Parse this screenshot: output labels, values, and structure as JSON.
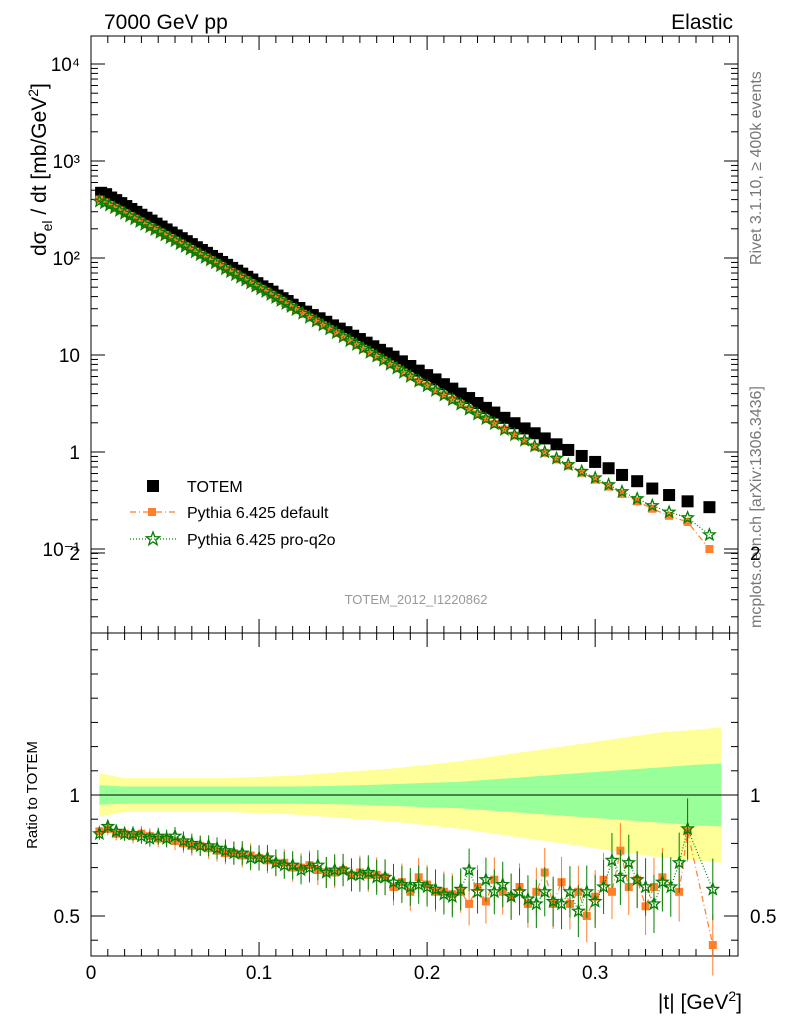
{
  "header": {
    "left": "7000 GeV pp",
    "right": "Elastic"
  },
  "side": {
    "rivet": "Rivet 3.1.10, ≥ 400k events",
    "mcplots": "mcplots.cern.ch [arXiv:1306.3436]"
  },
  "analysis_id": "TOTEM_2012_I1220862",
  "x_axis_label": "|t| [GeV²]",
  "y_axis_label": "dσel / dt [mb/GeV²]",
  "ratio_axis_label": "Ratio to TOTEM",
  "legend": [
    {
      "label": "TOTEM"
    },
    {
      "label": "Pythia 6.425 default"
    },
    {
      "label": "Pythia 6.425 pro-q2o"
    }
  ],
  "colors": {
    "data": "#000000",
    "default": "#ff7f2a",
    "proq2o": "#007f00",
    "band_inner": "#99ff99",
    "band_outer": "#ffff99"
  },
  "chart_data": [
    {
      "type": "scatter",
      "name": "main",
      "xlim": [
        0,
        0.385
      ],
      "ylim": [
        0.015,
        20000
      ],
      "log_y": true,
      "xticks": [
        "0",
        "0.1",
        "0.2",
        "0.3"
      ],
      "yticks": [
        "10⁻¹",
        "1",
        "10",
        "10²",
        "10³",
        "10⁴"
      ],
      "x": [
        0.005,
        0.01,
        0.015,
        0.02,
        0.025,
        0.03,
        0.035,
        0.04,
        0.045,
        0.05,
        0.055,
        0.06,
        0.065,
        0.07,
        0.075,
        0.08,
        0.085,
        0.09,
        0.095,
        0.1,
        0.105,
        0.11,
        0.115,
        0.12,
        0.125,
        0.13,
        0.135,
        0.14,
        0.145,
        0.15,
        0.155,
        0.16,
        0.165,
        0.17,
        0.175,
        0.18,
        0.185,
        0.19,
        0.195,
        0.2,
        0.205,
        0.21,
        0.215,
        0.22,
        0.225,
        0.23,
        0.235,
        0.24,
        0.245,
        0.25,
        0.255,
        0.26,
        0.265,
        0.27,
        0.275,
        0.28,
        0.285,
        0.29,
        0.295,
        0.3,
        0.305,
        0.31,
        0.315,
        0.32,
        0.325,
        0.33,
        0.335,
        0.34,
        0.345,
        0.35,
        0.355,
        0.36,
        0.365,
        0.37
      ],
      "series": [
        {
          "name": "TOTEM",
          "style": "data",
          "x": [
            0.006,
            0.009,
            0.012,
            0.015,
            0.018,
            0.021,
            0.024,
            0.027,
            0.03,
            0.033,
            0.036,
            0.039,
            0.042,
            0.045,
            0.048,
            0.051,
            0.054,
            0.057,
            0.06,
            0.063,
            0.066,
            0.069,
            0.072,
            0.075,
            0.078,
            0.081,
            0.084,
            0.087,
            0.09,
            0.093,
            0.096,
            0.099,
            0.102,
            0.105,
            0.108,
            0.111,
            0.114,
            0.117,
            0.12,
            0.124,
            0.128,
            0.132,
            0.136,
            0.14,
            0.144,
            0.148,
            0.152,
            0.156,
            0.16,
            0.164,
            0.168,
            0.172,
            0.176,
            0.18,
            0.185,
            0.19,
            0.195,
            0.2,
            0.205,
            0.21,
            0.215,
            0.22,
            0.225,
            0.23,
            0.235,
            0.24,
            0.246,
            0.252,
            0.258,
            0.264,
            0.27,
            0.277,
            0.284,
            0.292,
            0.3,
            0.308,
            0.316,
            0.325,
            0.334,
            0.344,
            0.355,
            0.368
          ],
          "values": [
            470,
            455,
            420,
            395,
            368,
            343,
            320,
            299,
            279,
            260,
            243,
            226,
            211,
            197,
            183,
            171,
            160,
            149,
            139,
            129,
            121,
            113,
            105,
            98,
            91,
            85,
            79,
            74,
            69,
            64,
            60,
            55,
            51,
            48,
            45,
            41,
            38.5,
            36,
            33,
            30.5,
            28,
            25.8,
            23.9,
            22,
            20.2,
            18.7,
            17.2,
            15.8,
            14.6,
            13.4,
            12.3,
            11.3,
            10.4,
            9.6,
            8.6,
            7.7,
            6.9,
            6.2,
            5.6,
            5.0,
            4.5,
            4.0,
            3.6,
            3.2,
            2.85,
            2.55,
            2.25,
            1.98,
            1.75,
            1.56,
            1.38,
            1.2,
            1.05,
            0.91,
            0.79,
            0.68,
            0.58,
            0.5,
            0.42,
            0.36,
            0.31,
            0.27
          ]
        },
        {
          "name": "Pythia 6.425 default",
          "style": "orange",
          "x": [
            0.005,
            0.008,
            0.011,
            0.014,
            0.017,
            0.02,
            0.023,
            0.026,
            0.029,
            0.032,
            0.035,
            0.038,
            0.041,
            0.044,
            0.047,
            0.05,
            0.053,
            0.056,
            0.059,
            0.062,
            0.065,
            0.068,
            0.071,
            0.074,
            0.077,
            0.08,
            0.083,
            0.086,
            0.089,
            0.092,
            0.095,
            0.098,
            0.101,
            0.104,
            0.107,
            0.11,
            0.113,
            0.116,
            0.119,
            0.122,
            0.126,
            0.13,
            0.134,
            0.138,
            0.142,
            0.146,
            0.15,
            0.154,
            0.158,
            0.162,
            0.166,
            0.17,
            0.174,
            0.178,
            0.182,
            0.186,
            0.19,
            0.195,
            0.2,
            0.205,
            0.21,
            0.215,
            0.22,
            0.225,
            0.23,
            0.235,
            0.24,
            0.246,
            0.252,
            0.258,
            0.264,
            0.27,
            0.277,
            0.284,
            0.292,
            0.3,
            0.308,
            0.316,
            0.325,
            0.334,
            0.344,
            0.355,
            0.368
          ],
          "values": [
            400,
            375,
            352,
            330,
            310,
            290,
            271,
            254,
            238,
            223,
            209,
            196,
            183,
            172,
            161,
            151,
            141,
            132,
            124,
            116,
            108,
            101,
            95,
            89,
            83,
            77,
            72,
            68,
            63,
            59,
            55,
            51,
            48,
            45,
            41.8,
            38.9,
            36.2,
            33.6,
            31.3,
            29.1,
            26.6,
            24.3,
            22.1,
            20.2,
            18.4,
            16.8,
            15.3,
            14.0,
            12.7,
            11.6,
            10.6,
            9.6,
            8.8,
            8.0,
            7.3,
            6.6,
            6.0,
            5.3,
            4.8,
            4.3,
            3.85,
            3.45,
            3.1,
            2.75,
            2.45,
            2.2,
            1.95,
            1.7,
            1.48,
            1.3,
            1.13,
            0.98,
            0.84,
            0.72,
            0.61,
            0.52,
            0.44,
            0.37,
            0.31,
            0.26,
            0.22,
            0.19,
            0.1
          ]
        },
        {
          "name": "Pythia 6.425 pro-q2o",
          "style": "green",
          "x": [
            0.005,
            0.008,
            0.011,
            0.014,
            0.017,
            0.02,
            0.023,
            0.026,
            0.029,
            0.032,
            0.035,
            0.038,
            0.041,
            0.044,
            0.047,
            0.05,
            0.053,
            0.056,
            0.059,
            0.062,
            0.065,
            0.068,
            0.071,
            0.074,
            0.077,
            0.08,
            0.083,
            0.086,
            0.089,
            0.092,
            0.095,
            0.098,
            0.101,
            0.104,
            0.107,
            0.11,
            0.113,
            0.116,
            0.119,
            0.122,
            0.126,
            0.13,
            0.134,
            0.138,
            0.142,
            0.146,
            0.15,
            0.154,
            0.158,
            0.162,
            0.166,
            0.17,
            0.174,
            0.178,
            0.182,
            0.186,
            0.19,
            0.195,
            0.2,
            0.205,
            0.21,
            0.215,
            0.22,
            0.225,
            0.23,
            0.235,
            0.24,
            0.246,
            0.252,
            0.258,
            0.264,
            0.27,
            0.277,
            0.284,
            0.292,
            0.3,
            0.308,
            0.316,
            0.325,
            0.334,
            0.344,
            0.355,
            0.368
          ],
          "values": [
            385,
            370,
            350,
            328,
            308,
            288,
            270,
            253,
            237,
            222,
            209,
            196,
            183,
            172,
            161,
            150,
            140,
            131,
            123,
            115,
            108,
            101,
            95,
            89,
            83,
            77,
            72,
            67,
            63,
            59,
            55,
            51,
            48,
            45,
            41.9,
            39.0,
            36.3,
            33.8,
            31.5,
            29.3,
            26.8,
            24.4,
            22.3,
            20.3,
            18.5,
            16.9,
            15.4,
            14.0,
            12.8,
            11.7,
            10.6,
            9.7,
            8.8,
            8.0,
            7.3,
            6.6,
            6.0,
            5.35,
            4.8,
            4.3,
            3.85,
            3.45,
            3.1,
            2.75,
            2.45,
            2.2,
            1.95,
            1.7,
            1.5,
            1.32,
            1.15,
            1.0,
            0.86,
            0.74,
            0.63,
            0.54,
            0.46,
            0.39,
            0.33,
            0.28,
            0.24,
            0.21,
            0.14
          ]
        }
      ]
    },
    {
      "type": "scatter",
      "name": "ratio",
      "xlim": [
        0,
        0.385
      ],
      "ylim": [
        0.35,
        2.35
      ],
      "xticks": [
        "0",
        "0.1",
        "0.2",
        "0.3"
      ],
      "yticks": [
        "0.5",
        "1",
        "2"
      ],
      "band": {
        "x": [
          0.005,
          0.02,
          0.04,
          0.06,
          0.08,
          0.1,
          0.12,
          0.14,
          0.16,
          0.18,
          0.2,
          0.22,
          0.24,
          0.26,
          0.28,
          0.3,
          0.32,
          0.34,
          0.36,
          0.375
        ],
        "inner_half": [
          0.04,
          0.035,
          0.035,
          0.035,
          0.035,
          0.035,
          0.035,
          0.037,
          0.04,
          0.045,
          0.05,
          0.055,
          0.065,
          0.075,
          0.085,
          0.095,
          0.105,
          0.115,
          0.125,
          0.13
        ],
        "outer_half": [
          0.09,
          0.07,
          0.07,
          0.07,
          0.07,
          0.075,
          0.08,
          0.09,
          0.1,
          0.11,
          0.125,
          0.14,
          0.16,
          0.18,
          0.2,
          0.22,
          0.24,
          0.26,
          0.27,
          0.28
        ]
      },
      "series": [
        {
          "name": "Pythia 6.425 default",
          "style": "orange",
          "x": [
            0.005,
            0.01,
            0.015,
            0.02,
            0.025,
            0.03,
            0.035,
            0.04,
            0.045,
            0.05,
            0.055,
            0.06,
            0.065,
            0.07,
            0.075,
            0.08,
            0.085,
            0.09,
            0.095,
            0.1,
            0.105,
            0.11,
            0.115,
            0.12,
            0.125,
            0.13,
            0.135,
            0.14,
            0.145,
            0.15,
            0.155,
            0.16,
            0.165,
            0.17,
            0.175,
            0.18,
            0.185,
            0.19,
            0.195,
            0.2,
            0.205,
            0.21,
            0.215,
            0.22,
            0.225,
            0.23,
            0.235,
            0.24,
            0.245,
            0.25,
            0.255,
            0.26,
            0.265,
            0.27,
            0.275,
            0.28,
            0.285,
            0.29,
            0.295,
            0.3,
            0.305,
            0.31,
            0.315,
            0.32,
            0.325,
            0.33,
            0.335,
            0.34,
            0.35,
            0.355,
            0.37
          ],
          "values": [
            0.85,
            0.86,
            0.84,
            0.84,
            0.83,
            0.84,
            0.83,
            0.82,
            0.82,
            0.81,
            0.8,
            0.79,
            0.79,
            0.78,
            0.77,
            0.76,
            0.76,
            0.75,
            0.75,
            0.74,
            0.73,
            0.72,
            0.72,
            0.7,
            0.7,
            0.71,
            0.69,
            0.68,
            0.68,
            0.69,
            0.67,
            0.68,
            0.67,
            0.67,
            0.66,
            0.62,
            0.64,
            0.6,
            0.66,
            0.63,
            0.6,
            0.6,
            0.59,
            0.6,
            0.55,
            0.62,
            0.56,
            0.65,
            0.6,
            0.58,
            0.62,
            0.55,
            0.6,
            0.68,
            0.55,
            0.64,
            0.55,
            0.6,
            0.5,
            0.58,
            0.65,
            0.6,
            0.77,
            0.62,
            0.65,
            0.54,
            0.62,
            0.66,
            0.6,
            0.85,
            0.38
          ]
        },
        {
          "name": "Pythia 6.425 pro-q2o",
          "style": "green",
          "x": [
            0.005,
            0.01,
            0.015,
            0.02,
            0.025,
            0.03,
            0.035,
            0.04,
            0.045,
            0.05,
            0.055,
            0.06,
            0.065,
            0.07,
            0.075,
            0.08,
            0.085,
            0.09,
            0.095,
            0.1,
            0.105,
            0.11,
            0.115,
            0.12,
            0.125,
            0.13,
            0.135,
            0.14,
            0.145,
            0.15,
            0.155,
            0.16,
            0.165,
            0.17,
            0.175,
            0.18,
            0.185,
            0.19,
            0.195,
            0.2,
            0.205,
            0.21,
            0.215,
            0.22,
            0.225,
            0.23,
            0.235,
            0.24,
            0.245,
            0.25,
            0.255,
            0.26,
            0.265,
            0.27,
            0.275,
            0.28,
            0.285,
            0.29,
            0.295,
            0.3,
            0.305,
            0.31,
            0.315,
            0.32,
            0.325,
            0.33,
            0.335,
            0.34,
            0.345,
            0.35,
            0.355,
            0.37
          ],
          "values": [
            0.84,
            0.87,
            0.85,
            0.84,
            0.84,
            0.83,
            0.82,
            0.83,
            0.82,
            0.83,
            0.81,
            0.8,
            0.79,
            0.79,
            0.78,
            0.77,
            0.76,
            0.76,
            0.74,
            0.74,
            0.74,
            0.72,
            0.71,
            0.71,
            0.69,
            0.7,
            0.71,
            0.68,
            0.69,
            0.69,
            0.67,
            0.67,
            0.68,
            0.66,
            0.66,
            0.64,
            0.63,
            0.62,
            0.63,
            0.62,
            0.61,
            0.59,
            0.58,
            0.61,
            0.69,
            0.6,
            0.65,
            0.6,
            0.63,
            0.58,
            0.6,
            0.57,
            0.55,
            0.6,
            0.56,
            0.55,
            0.6,
            0.52,
            0.6,
            0.56,
            0.62,
            0.73,
            0.66,
            0.72,
            0.65,
            0.62,
            0.55,
            0.64,
            0.62,
            0.72,
            0.86,
            0.61
          ]
        }
      ]
    }
  ]
}
